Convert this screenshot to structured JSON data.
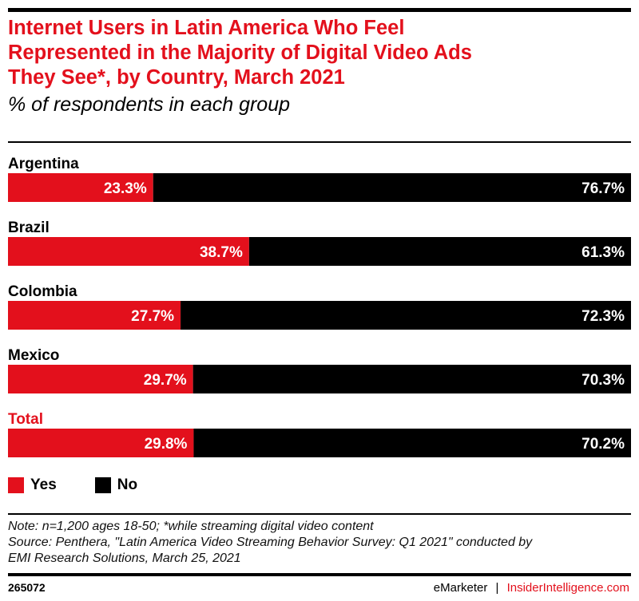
{
  "title": "Internet Users in Latin America Who Feel Represented in the Majority of Digital Video Ads They See*, by Country, March 2021",
  "title_lines": [
    "Internet Users in Latin America Who Feel",
    "Represented in the Majority of Digital Video Ads",
    "They See*, by Country, March 2021"
  ],
  "subtitle": "% of respondents in each group",
  "colors": {
    "yes": "#e3101c",
    "no": "#000000",
    "title": "#e3101c",
    "total_label": "#e3101c"
  },
  "legend": [
    {
      "label": "Yes",
      "color": "#e3101c"
    },
    {
      "label": "No",
      "color": "#000000"
    }
  ],
  "notes": {
    "note": "Note: n=1,200 ages 18-50; *while streaming digital video content",
    "source_line1": "Source: Penthera, \"Latin America Video Streaming Behavior Survey: Q1 2021\" conducted by",
    "source_line2": "EMI Research Solutions, March 25, 2021"
  },
  "footer": {
    "chart_id": "265072",
    "brand": "eMarketer",
    "separator": "|",
    "site": "InsiderIntelligence.com"
  },
  "chart_data": {
    "type": "bar",
    "orientation": "horizontal",
    "stacked": true,
    "title": "Internet Users in Latin America Who Feel Represented in the Majority of Digital Video Ads They See*, by Country, March 2021",
    "subtitle": "% of respondents in each group",
    "xlabel": "",
    "ylabel": "",
    "xlim": [
      0,
      100
    ],
    "grid": false,
    "legend_position": "bottom-left",
    "categories": [
      "Argentina",
      "Brazil",
      "Colombia",
      "Mexico",
      "Total"
    ],
    "series": [
      {
        "name": "Yes",
        "color": "#e3101c",
        "values": [
          23.3,
          38.7,
          27.7,
          29.7,
          29.8
        ],
        "labels": [
          "23.3%",
          "38.7%",
          "27.7%",
          "29.7%",
          "29.8%"
        ]
      },
      {
        "name": "No",
        "color": "#000000",
        "values": [
          76.7,
          61.3,
          72.3,
          70.3,
          70.2
        ],
        "labels": [
          "76.7%",
          "61.3%",
          "72.3%",
          "70.3%",
          "70.2%"
        ]
      }
    ],
    "highlighted_category": "Total"
  }
}
